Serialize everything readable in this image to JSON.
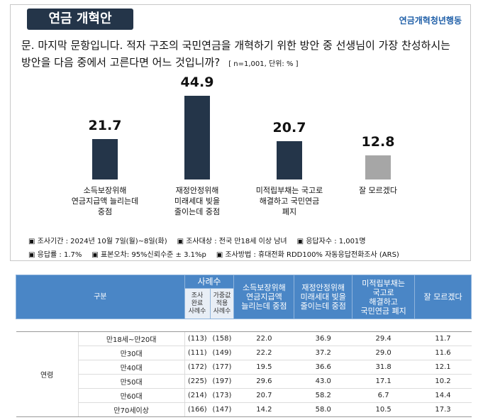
{
  "chart_data": {
    "type": "bar",
    "title": "연금 개혁안",
    "source": "연금개혁청년행동",
    "subtitle": "문. 마지막 문항입니다. 적자 구조의 국민연금을 개혁하기 위한 방안 중 선생님이 가장 찬성하시는 방안을 다음 중에서 고른다면 어느 것입니까?",
    "note": "[ n=1,001, 단위: % ]",
    "categories": [
      "소득보장위해\n연금지급액 늘리는데\n중점",
      "재정안정위해\n미래세대 빚을\n줄이는데 중점",
      "미적립부채는 국고로\n해결하고 국민연금\n폐지",
      "잘 모르겠다"
    ],
    "values": [
      21.7,
      44.9,
      20.7,
      12.8
    ],
    "colors": [
      "#243549",
      "#243549",
      "#243549",
      "#a6a6a6"
    ],
    "footnotes": [
      [
        "▣ 조사기간 : 2024년 10월 7일(월)~8일(화)",
        "▣ 조사대상 : 전국 만18세 이상 남녀",
        "▣ 응답자수 : 1,001명"
      ],
      [
        "▣ 응답률 : 1.7%",
        "▣ 표본오차: 95%신뢰수준 ± 3.1%p",
        "▣ 조사방법 : 휴대전화 RDD100% 자동응답전화조사 (ARS)"
      ]
    ]
  },
  "table": {
    "header": "구분",
    "sample_header": "사례수",
    "sample_columns": [
      "조사\n완료\n사례수",
      "가중값\n적용\n사례수"
    ],
    "option_columns": [
      "소득보장위해\n연금지급액\n늘리는데 중점",
      "재정안정위해\n미래세대 빚을\n줄이는데 중점",
      "미적립부채는\n국고로\n해결하고\n국민연금 폐지",
      "잘 모르겠다"
    ],
    "group": "연령",
    "rows": [
      [
        "만18세~만20대",
        "(113)",
        "(158)",
        "22.0",
        "36.9",
        "29.4",
        "11.7"
      ],
      [
        "만30대",
        "(111)",
        "(149)",
        "22.2",
        "37.2",
        "29.0",
        "11.6"
      ],
      [
        "만40대",
        "(172)",
        "(177)",
        "19.5",
        "36.6",
        "31.8",
        "12.1"
      ],
      [
        "만50대",
        "(225)",
        "(197)",
        "29.6",
        "43.0",
        "17.1",
        "10.2"
      ],
      [
        "만60대",
        "(214)",
        "(173)",
        "20.7",
        "58.2",
        "6.7",
        "14.4"
      ],
      [
        "만70세이상",
        "(166)",
        "(147)",
        "14.2",
        "58.0",
        "10.5",
        "17.3"
      ]
    ]
  }
}
